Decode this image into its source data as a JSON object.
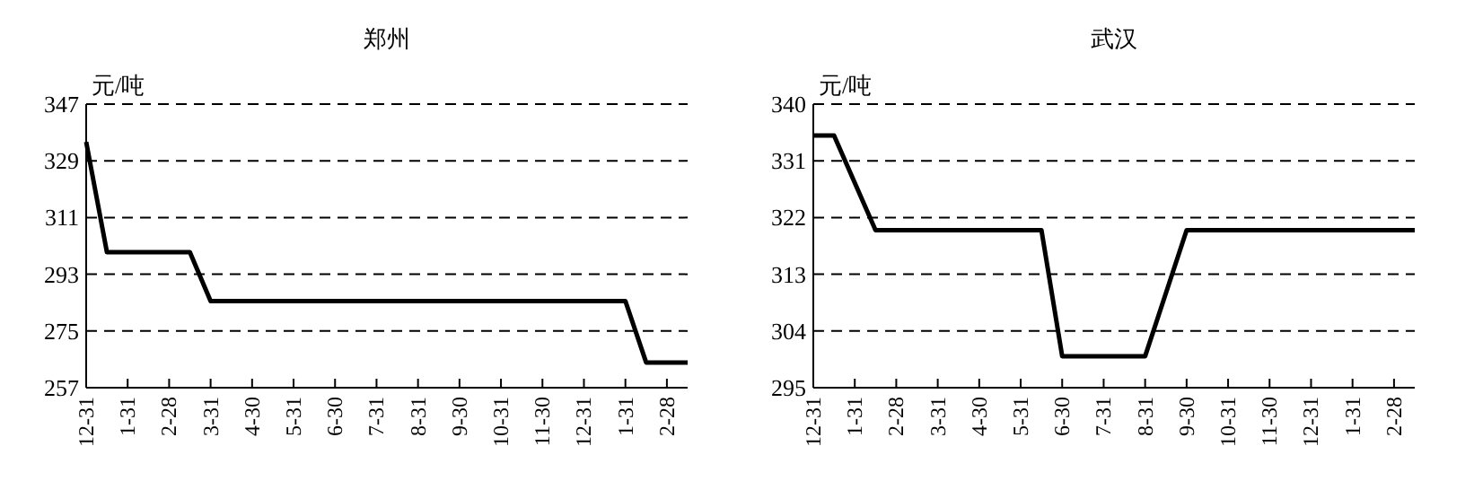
{
  "chart_data": [
    {
      "type": "line",
      "title": "郑州",
      "ylabel": "元/吨",
      "categories": [
        "12-31",
        null,
        "1-31",
        null,
        "2-28",
        null,
        "3-31",
        null,
        "4-30",
        null,
        "5-31",
        null,
        "6-30",
        null,
        "7-31",
        null,
        "8-31",
        null,
        "9-30",
        null,
        "10-31",
        null,
        "11-30",
        null,
        "12-31",
        null,
        "1-31",
        null,
        "2-28",
        null
      ],
      "values": [
        335,
        300,
        300,
        300,
        300,
        300,
        284.5,
        284.5,
        284.5,
        284.5,
        284.5,
        284.5,
        284.5,
        284.5,
        284.5,
        284.5,
        284.5,
        284.5,
        284.5,
        284.5,
        284.5,
        284.5,
        284.5,
        284.5,
        284.5,
        284.5,
        284.5,
        265,
        265,
        265
      ],
      "color": "#000000",
      "ylim": [
        257,
        347
      ],
      "yticks": [
        257,
        275,
        293,
        311,
        329,
        347
      ],
      "grid": "y"
    },
    {
      "type": "line",
      "title": "武汉",
      "ylabel": "元/吨",
      "categories": [
        "12-31",
        null,
        "1-31",
        null,
        "2-28",
        null,
        "3-31",
        null,
        "4-30",
        null,
        "5-31",
        null,
        "6-30",
        null,
        "7-31",
        null,
        "8-31",
        null,
        "9-30",
        null,
        "10-31",
        null,
        "11-30",
        null,
        "12-31",
        null,
        "1-31",
        null,
        "2-28",
        null
      ],
      "values": [
        335,
        335,
        327.5,
        320,
        320,
        320,
        320,
        320,
        320,
        320,
        320,
        320,
        300,
        300,
        300,
        300,
        300,
        310,
        320,
        320,
        320,
        320,
        320,
        320,
        320,
        320,
        320,
        320,
        320,
        320
      ],
      "color": "#000000",
      "ylim": [
        295,
        340
      ],
      "yticks": [
        295,
        304,
        313,
        322,
        331,
        340
      ],
      "grid": "y"
    }
  ]
}
